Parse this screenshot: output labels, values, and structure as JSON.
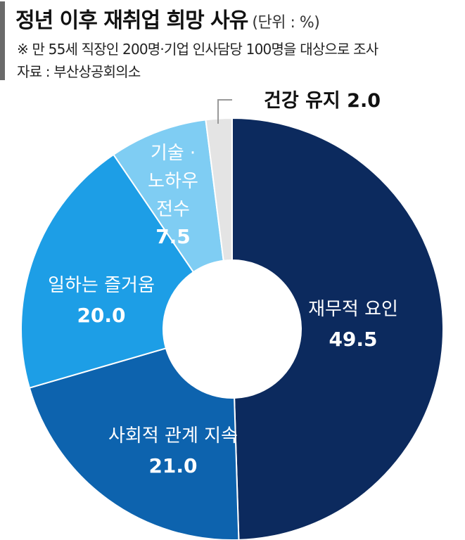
{
  "header": {
    "title": "정년 이후 재취업 희망 사유",
    "unit": "(단위 : %)",
    "note": "※ 만 55세 직장인 200명·기업 인사담당 100명을 대상으로 조사",
    "source": "자료 : 부산상공회의소"
  },
  "chart_data": {
    "type": "pie",
    "donut": true,
    "title": "정년 이후 재취업 희망 사유",
    "unit": "%",
    "slices": [
      {
        "label": "재무적 요인",
        "label_lines": [
          "재무적 요인"
        ],
        "value": 49.5,
        "value_text": "49.5",
        "color": "#0c2a5e",
        "text_color": "#ffffff"
      },
      {
        "label": "사회적 관계 지속",
        "label_lines": [
          "사회적 관계 지속"
        ],
        "value": 21.0,
        "value_text": "21.0",
        "color": "#0d63ae",
        "text_color": "#ffffff"
      },
      {
        "label": "일하는 즐거움",
        "label_lines": [
          "일하는 즐거움"
        ],
        "value": 20.0,
        "value_text": "20.0",
        "color": "#1d9ee6",
        "text_color": "#ffffff"
      },
      {
        "label": "기술·노하우 전수",
        "label_lines": [
          "기술 ·",
          "노하우",
          "전수"
        ],
        "value": 7.5,
        "value_text": "7.5",
        "color": "#7fcdf3",
        "text_color": "#ffffff"
      },
      {
        "label": "건강 유지",
        "label_lines": [
          "건강 유지"
        ],
        "value": 2.0,
        "value_text": "2.0",
        "color": "#e4e4e4",
        "text_color": "#111111",
        "callout": true
      }
    ]
  }
}
